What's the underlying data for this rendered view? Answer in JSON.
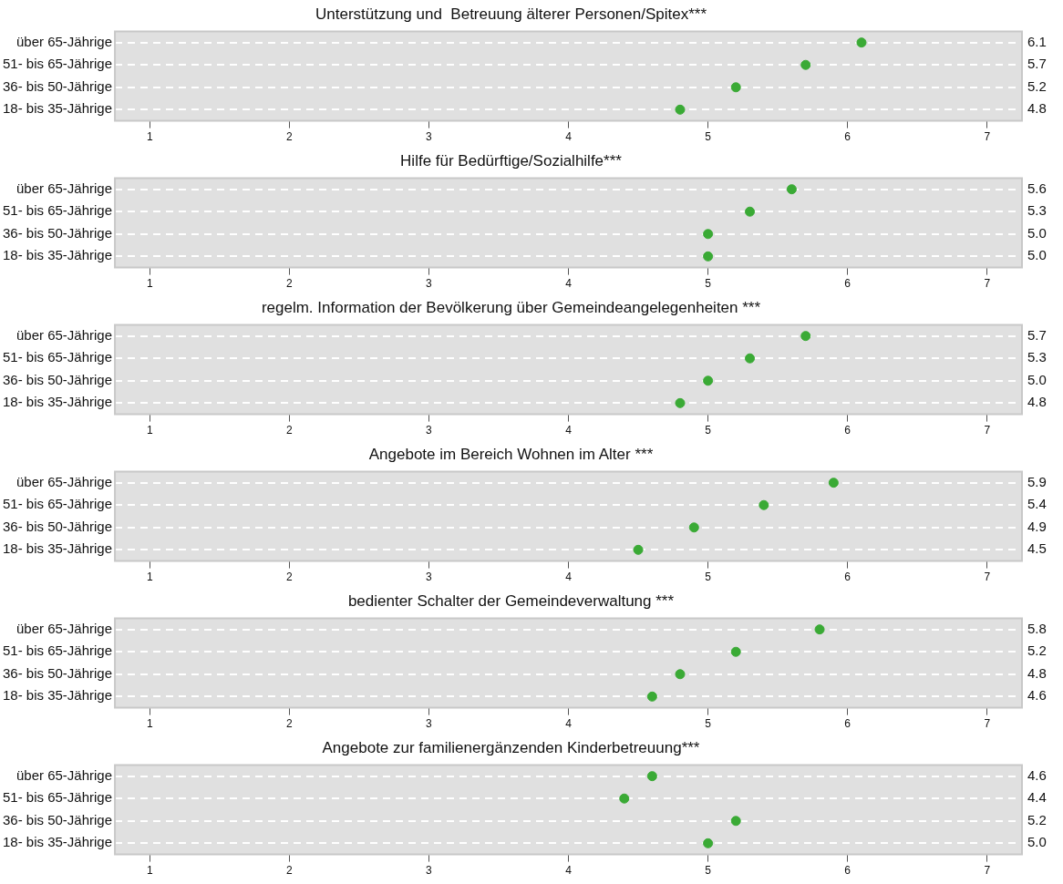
{
  "chart_data": [
    {
      "type": "scatter",
      "title": "Unterstützung und  Betreuung älterer Personen/Spitex***",
      "categories": [
        "über 65-Jährige",
        "51- bis 65-Jährige",
        "36- bis 50-Jährige",
        "18- bis 35-Jährige"
      ],
      "series": [
        {
          "color": "#3aaa35",
          "values": [
            6.1,
            5.7,
            5.2,
            4.8
          ],
          "value_labels": [
            "6.1",
            "5.7",
            "5.2",
            "4.8"
          ]
        }
      ],
      "orientation": "horizontal",
      "xlim": [
        0.75,
        7.25
      ],
      "xticks": [
        1,
        2,
        3,
        4,
        5,
        6,
        7
      ],
      "grid": "y",
      "marker": "circle",
      "legend": false
    },
    {
      "type": "scatter",
      "title": "Hilfe für Bedürftige/Sozialhilfe***",
      "categories": [
        "über 65-Jährige",
        "51- bis 65-Jährige",
        "36- bis 50-Jährige",
        "18- bis 35-Jährige"
      ],
      "series": [
        {
          "color": "#3aaa35",
          "values": [
            5.6,
            5.3,
            5.0,
            5.0
          ],
          "value_labels": [
            "5.6",
            "5.3",
            "5.0",
            "5.0"
          ]
        }
      ],
      "orientation": "horizontal",
      "xlim": [
        0.75,
        7.25
      ],
      "xticks": [
        1,
        2,
        3,
        4,
        5,
        6,
        7
      ],
      "grid": "y",
      "marker": "circle",
      "legend": false
    },
    {
      "type": "scatter",
      "title": "regelm. Information der Bevölkerung über Gemeindeangelegenheiten ***",
      "categories": [
        "über 65-Jährige",
        "51- bis 65-Jährige",
        "36- bis 50-Jährige",
        "18- bis 35-Jährige"
      ],
      "series": [
        {
          "color": "#3aaa35",
          "values": [
            5.7,
            5.3,
            5.0,
            4.8
          ],
          "value_labels": [
            "5.7",
            "5.3",
            "5.0",
            "4.8"
          ]
        }
      ],
      "orientation": "horizontal",
      "xlim": [
        0.75,
        7.25
      ],
      "xticks": [
        1,
        2,
        3,
        4,
        5,
        6,
        7
      ],
      "grid": "y",
      "marker": "circle",
      "legend": false
    },
    {
      "type": "scatter",
      "title": "Angebote im Bereich Wohnen im Alter ***",
      "categories": [
        "über 65-Jährige",
        "51- bis 65-Jährige",
        "36- bis 50-Jährige",
        "18- bis 35-Jährige"
      ],
      "series": [
        {
          "color": "#3aaa35",
          "values": [
            5.9,
            5.4,
            4.9,
            4.5
          ],
          "value_labels": [
            "5.9",
            "5.4",
            "4.9",
            "4.5"
          ]
        }
      ],
      "orientation": "horizontal",
      "xlim": [
        0.75,
        7.25
      ],
      "xticks": [
        1,
        2,
        3,
        4,
        5,
        6,
        7
      ],
      "grid": "y",
      "marker": "circle",
      "legend": false
    },
    {
      "type": "scatter",
      "title": "bedienter Schalter der Gemeindeverwaltung ***",
      "categories": [
        "über 65-Jährige",
        "51- bis 65-Jährige",
        "36- bis 50-Jährige",
        "18- bis 35-Jährige"
      ],
      "series": [
        {
          "color": "#3aaa35",
          "values": [
            5.8,
            5.2,
            4.8,
            4.6
          ],
          "value_labels": [
            "5.8",
            "5.2",
            "4.8",
            "4.6"
          ]
        }
      ],
      "orientation": "horizontal",
      "xlim": [
        0.75,
        7.25
      ],
      "xticks": [
        1,
        2,
        3,
        4,
        5,
        6,
        7
      ],
      "grid": "y",
      "marker": "circle",
      "legend": false
    },
    {
      "type": "scatter",
      "title": "Angebote zur familienergänzenden Kinderbetreuung***",
      "categories": [
        "über 65-Jährige",
        "51- bis 65-Jährige",
        "36- bis 50-Jährige",
        "18- bis 35-Jährige"
      ],
      "series": [
        {
          "color": "#3aaa35",
          "values": [
            4.6,
            4.4,
            5.2,
            5.0
          ],
          "value_labels": [
            "4.6",
            "4.4",
            "5.2",
            "5.0"
          ]
        }
      ],
      "orientation": "horizontal",
      "xlim": [
        0.75,
        7.25
      ],
      "xticks": [
        1,
        2,
        3,
        4,
        5,
        6,
        7
      ],
      "grid": "y",
      "marker": "circle",
      "legend": false
    }
  ]
}
